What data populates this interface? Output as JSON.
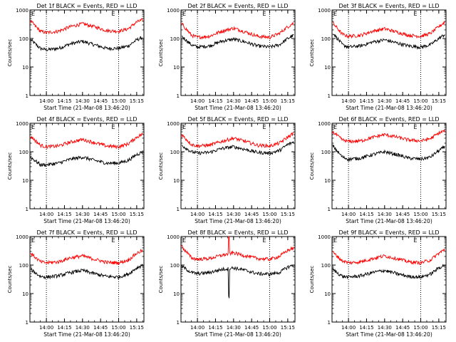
{
  "chart_data": {
    "type": "line",
    "yscale": "log",
    "ylim": [
      1,
      1000
    ],
    "y_ticks": [
      1,
      10,
      100,
      1000
    ],
    "y_tick_labels": [
      "1",
      "10",
      "100",
      "1000"
    ],
    "xlim_time": [
      "13:46:20",
      "15:21"
    ],
    "x_ticks_time": [
      "14:00",
      "14:15",
      "14:30",
      "14:45",
      "15:00",
      "15:15"
    ],
    "x_tick_labels": [
      "14:00",
      "14:15",
      "14:30",
      "14:45",
      "15:00",
      "15:15"
    ],
    "event_marker_times": [
      "14:00",
      "15:00"
    ],
    "event_marker_labels": [
      "E",
      "E"
    ],
    "ylabel": "Counts/sec",
    "xlabel": "Start Time (21-Mar-08 13:46:20)",
    "series_colors": {
      "events": "#000000",
      "lld": "#ff0000"
    },
    "panels": [
      {
        "title": "Det 1f BLACK = Events, RED = LLD",
        "series": [
          {
            "role": "events",
            "times": [
              "13:47",
              "13:55",
              "14:00",
              "14:10",
              "14:20",
              "14:30",
              "14:40",
              "14:50",
              "15:00",
              "15:08",
              "15:15",
              "15:20"
            ],
            "values": [
              90,
              45,
              40,
              45,
              65,
              80,
              60,
              45,
              45,
              55,
              90,
              110
            ]
          },
          {
            "role": "lld",
            "times": [
              "13:47",
              "13:55",
              "14:00",
              "14:10",
              "14:20",
              "14:30",
              "14:40",
              "14:50",
              "15:00",
              "15:08",
              "15:15",
              "15:20"
            ],
            "values": [
              400,
              180,
              160,
              180,
              260,
              330,
              260,
              190,
              180,
              220,
              380,
              450
            ]
          }
        ]
      },
      {
        "title": "Det 2f BLACK = Events, RED = LLD",
        "series": [
          {
            "role": "events",
            "times": [
              "13:47",
              "13:55",
              "14:00",
              "14:10",
              "14:20",
              "14:30",
              "14:40",
              "14:50",
              "15:00",
              "15:08",
              "15:15",
              "15:20"
            ],
            "values": [
              120,
              60,
              50,
              55,
              80,
              95,
              75,
              55,
              50,
              60,
              100,
              130
            ]
          },
          {
            "role": "lld",
            "times": [
              "13:47",
              "13:55",
              "14:00",
              "14:10",
              "14:20",
              "14:30",
              "14:40",
              "14:50",
              "15:00",
              "15:08",
              "15:15",
              "15:20"
            ],
            "values": [
              330,
              130,
              110,
              120,
              180,
              230,
              170,
              120,
              110,
              150,
              260,
              350
            ]
          }
        ]
      },
      {
        "title": "Det 3f BLACK = Events, RED = LLD",
        "series": [
          {
            "role": "events",
            "times": [
              "13:47",
              "13:55",
              "14:00",
              "14:10",
              "14:20",
              "14:30",
              "14:40",
              "14:50",
              "15:00",
              "15:08",
              "15:15",
              "15:20"
            ],
            "values": [
              160,
              60,
              50,
              55,
              75,
              90,
              70,
              55,
              50,
              60,
              100,
              140
            ]
          },
          {
            "role": "lld",
            "times": [
              "13:47",
              "13:55",
              "14:00",
              "14:10",
              "14:20",
              "14:30",
              "14:40",
              "14:50",
              "15:00",
              "15:08",
              "15:15",
              "15:20"
            ],
            "values": [
              350,
              140,
              120,
              130,
              180,
              220,
              170,
              130,
              120,
              150,
              260,
              380
            ]
          }
        ]
      },
      {
        "title": "Det 4f BLACK = Events, RED = LLD",
        "series": [
          {
            "role": "events",
            "times": [
              "13:47",
              "13:55",
              "14:00",
              "14:10",
              "14:20",
              "14:30",
              "14:40",
              "14:50",
              "15:00",
              "15:08",
              "15:15",
              "15:20"
            ],
            "values": [
              65,
              35,
              35,
              40,
              55,
              65,
              50,
              40,
              40,
              50,
              80,
              100
            ]
          },
          {
            "role": "lld",
            "times": [
              "13:47",
              "13:55",
              "14:00",
              "14:10",
              "14:20",
              "14:30",
              "14:40",
              "14:50",
              "15:00",
              "15:08",
              "15:15",
              "15:20"
            ],
            "values": [
              350,
              170,
              150,
              160,
              220,
              270,
              210,
              160,
              150,
              190,
              330,
              420
            ]
          }
        ]
      },
      {
        "title": "Det 5f BLACK = Events, RED = LLD",
        "series": [
          {
            "role": "events",
            "times": [
              "13:47",
              "13:55",
              "14:00",
              "14:10",
              "14:20",
              "14:30",
              "14:40",
              "14:50",
              "15:00",
              "15:08",
              "15:15",
              "15:20"
            ],
            "values": [
              170,
              100,
              90,
              95,
              130,
              150,
              120,
              95,
              90,
              110,
              180,
              220
            ]
          },
          {
            "role": "lld",
            "times": [
              "13:47",
              "13:55",
              "14:00",
              "14:10",
              "14:20",
              "14:30",
              "14:40",
              "14:50",
              "15:00",
              "15:08",
              "15:15",
              "15:20"
            ],
            "values": [
              400,
              180,
              160,
              170,
              230,
              300,
              230,
              170,
              160,
              200,
              330,
              450
            ]
          }
        ]
      },
      {
        "title": "Det 6f BLACK = Events, RED = LLD",
        "series": [
          {
            "role": "events",
            "times": [
              "13:47",
              "13:55",
              "14:00",
              "14:10",
              "14:20",
              "14:30",
              "14:40",
              "14:50",
              "15:00",
              "15:08",
              "15:15",
              "15:20"
            ],
            "values": [
              160,
              65,
              55,
              60,
              80,
              100,
              80,
              60,
              55,
              65,
              110,
              150
            ]
          },
          {
            "role": "lld",
            "times": [
              "13:47",
              "13:55",
              "14:00",
              "14:10",
              "14:20",
              "14:30",
              "14:40",
              "14:50",
              "15:00",
              "15:08",
              "15:15",
              "15:20"
            ],
            "values": [
              500,
              260,
              230,
              240,
              320,
              400,
              330,
              260,
              240,
              290,
              450,
              550
            ]
          }
        ]
      },
      {
        "title": "Det 7f BLACK = Events, RED = LLD",
        "series": [
          {
            "role": "events",
            "times": [
              "13:47",
              "13:55",
              "14:00",
              "14:10",
              "14:20",
              "14:30",
              "14:40",
              "14:50",
              "15:00",
              "15:08",
              "15:15",
              "15:20"
            ],
            "values": [
              70,
              40,
              38,
              42,
              55,
              65,
              50,
              40,
              38,
              48,
              80,
              100
            ]
          },
          {
            "role": "lld",
            "times": [
              "13:47",
              "13:55",
              "14:00",
              "14:10",
              "14:20",
              "14:30",
              "14:40",
              "14:50",
              "15:00",
              "15:08",
              "15:15",
              "15:20"
            ],
            "values": [
              260,
              130,
              120,
              130,
              180,
              210,
              160,
              125,
              120,
              150,
              260,
              330
            ]
          }
        ]
      },
      {
        "title": "Det 8f BLACK = Events, RED = LLD",
        "series": [
          {
            "role": "events",
            "times": [
              "13:47",
              "13:55",
              "14:00",
              "14:10",
              "14:20",
              "14:26",
              "14:30",
              "14:40",
              "14:50",
              "15:00",
              "15:08",
              "15:15",
              "15:20"
            ],
            "values": [
              90,
              55,
              50,
              55,
              70,
              8,
              80,
              65,
              50,
              48,
              55,
              85,
              100
            ]
          },
          {
            "role": "lld",
            "times": [
              "13:47",
              "13:55",
              "14:00",
              "14:10",
              "14:20",
              "14:26",
              "14:30",
              "14:40",
              "14:50",
              "15:00",
              "15:08",
              "15:15",
              "15:20"
            ],
            "values": [
              450,
              180,
              160,
              170,
              220,
              1000,
              270,
              210,
              170,
              160,
              200,
              330,
              400
            ]
          }
        ]
      },
      {
        "title": "Det 9f BLACK = Events, RED = LLD",
        "series": [
          {
            "role": "events",
            "times": [
              "13:47",
              "13:55",
              "14:00",
              "14:10",
              "14:20",
              "14:30",
              "14:40",
              "14:50",
              "15:00",
              "15:08",
              "15:15",
              "15:20"
            ],
            "values": [
              70,
              40,
              38,
              42,
              55,
              65,
              50,
              40,
              38,
              48,
              80,
              100
            ]
          },
          {
            "role": "lld",
            "times": [
              "13:47",
              "13:55",
              "14:00",
              "14:10",
              "14:20",
              "14:30",
              "14:40",
              "14:50",
              "15:00",
              "15:08",
              "15:15",
              "15:20"
            ],
            "values": [
              280,
              140,
              120,
              130,
              170,
              210,
              170,
              130,
              120,
              150,
              260,
              350
            ]
          }
        ]
      }
    ]
  }
}
